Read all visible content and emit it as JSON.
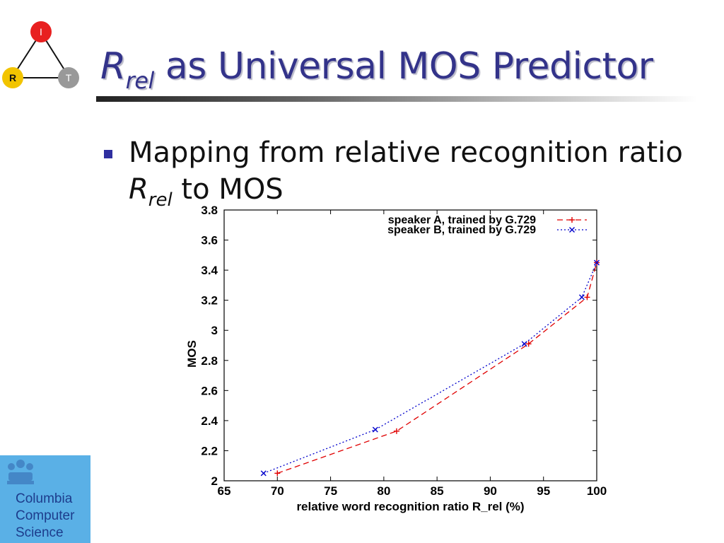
{
  "logo": {
    "node_top": "I",
    "node_left": "R",
    "node_right": "T"
  },
  "slide": {
    "title_symbol": "R",
    "title_subscript": "rel",
    "title_rest": " as Universal MOS Predictor",
    "bullet_line1": "Mapping from relative recognition ratio",
    "bullet_symbol": "R",
    "bullet_subscript": "rel",
    "bullet_rest": " to MOS"
  },
  "footer_logo": {
    "line1": "Columbia",
    "line2": "Computer",
    "line3": "Science"
  },
  "colors": {
    "title": "#33338a",
    "bullet": "#2f2fa0",
    "series_a": "#e00000",
    "series_b": "#0000cc",
    "logo_bg": "#5ab0e6"
  },
  "chart_data": {
    "type": "line",
    "xlabel": "relative word recognition ratio R_rel (%)",
    "ylabel": "MOS",
    "xlim": [
      65,
      100
    ],
    "ylim": [
      2,
      3.8
    ],
    "xticks": [
      65,
      70,
      75,
      80,
      85,
      90,
      95,
      100
    ],
    "yticks": [
      2,
      2.2,
      2.4,
      2.6,
      2.8,
      3,
      3.2,
      3.4,
      3.6,
      3.8
    ],
    "legend_position": "top-right",
    "series": [
      {
        "name": "speaker A, trained by G.729",
        "style": "dashed",
        "marker": "+",
        "x": [
          70.0,
          81.2,
          93.6,
          99.1,
          100.0
        ],
        "y": [
          2.05,
          2.33,
          2.91,
          3.22,
          3.45
        ]
      },
      {
        "name": "speaker B, trained by G.729",
        "style": "dotted",
        "marker": "x",
        "x": [
          68.7,
          79.2,
          93.2,
          98.6,
          100.0
        ],
        "y": [
          2.05,
          2.34,
          2.91,
          3.22,
          3.45
        ]
      }
    ]
  }
}
